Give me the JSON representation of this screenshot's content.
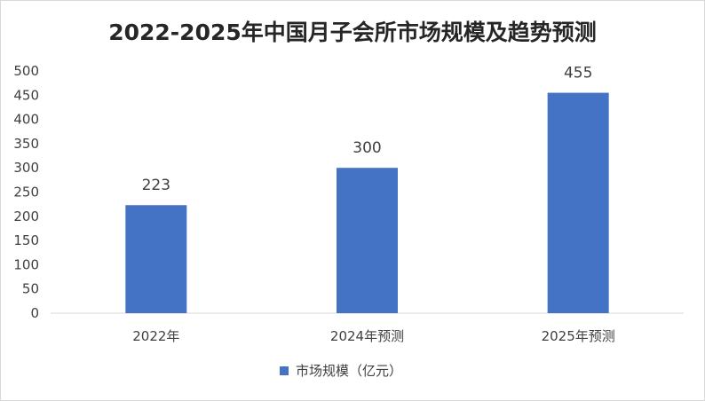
{
  "chart_data": {
    "type": "bar",
    "title": "2022-2025年中国月子会所市场规模及趋势预测",
    "categories": [
      "2022年",
      "2024年预测",
      "2025年预测"
    ],
    "series": [
      {
        "name": "市场规模（亿元）",
        "values": [
          223,
          300,
          455
        ],
        "color": "#4472C4"
      }
    ],
    "y_ticks": [
      "0",
      "50",
      "100",
      "150",
      "200",
      "250",
      "300",
      "350",
      "400",
      "450",
      "500"
    ],
    "ylim": [
      0,
      500
    ],
    "xlabel": "",
    "ylabel": "",
    "grid": false,
    "data_labels": true,
    "legend_position": "bottom"
  }
}
